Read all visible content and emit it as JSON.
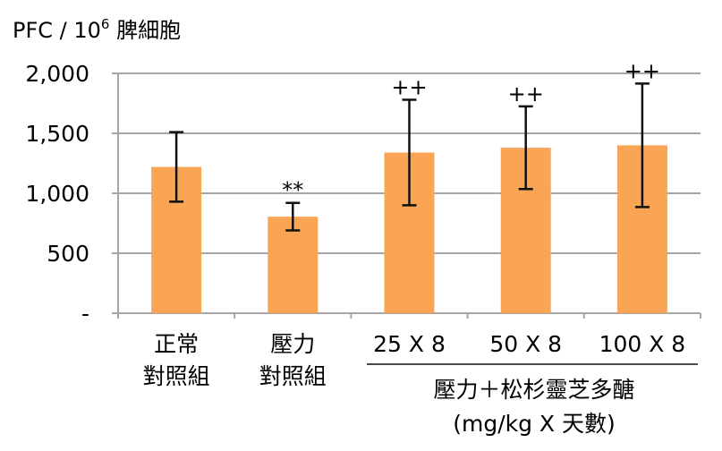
{
  "chart_data": {
    "type": "bar",
    "title": "PFC / 10",
    "title_superscript": "6",
    "title_suffix": "脾細胞",
    "ylim": [
      0,
      2000
    ],
    "yticks": [
      0,
      500,
      1000,
      1500,
      2000
    ],
    "ytick_labels": [
      "-",
      "500",
      "1,000",
      "1,500",
      "2,000"
    ],
    "grid": true,
    "categories": [
      [
        "正常",
        "對照組"
      ],
      [
        "壓力",
        "對照組"
      ],
      [
        "25 X 8"
      ],
      [
        "50 X 8"
      ],
      [
        "100 X 8"
      ]
    ],
    "values": [
      1220,
      805,
      1340,
      1380,
      1400
    ],
    "errors": [
      290,
      115,
      440,
      345,
      515
    ],
    "annotations": [
      "",
      "**",
      "++",
      "++",
      "++"
    ],
    "group_label": [
      "壓力＋松杉靈芝多醣",
      "(mg/kg X 天數)"
    ],
    "bar_color": "#F9A555",
    "grid_color": "#A6A6A6"
  }
}
